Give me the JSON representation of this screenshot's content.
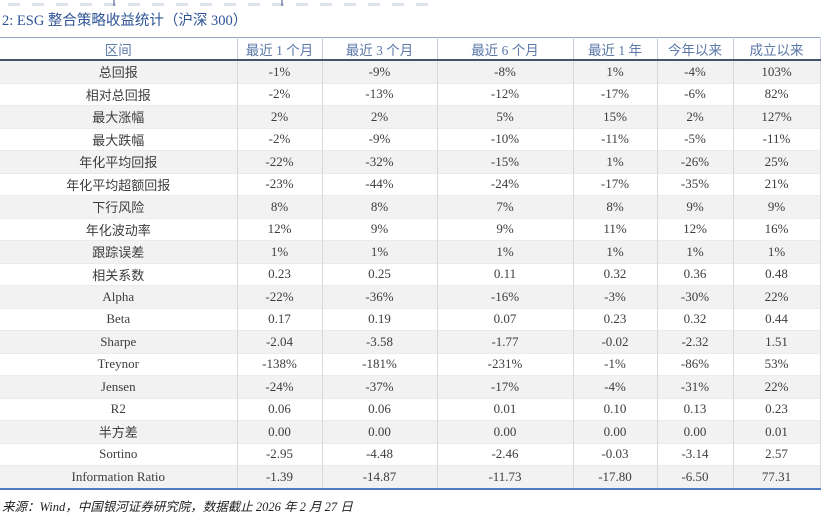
{
  "title": "2: ESG 整合策略收益统计（沪深 300）",
  "table": {
    "columns": [
      "区间",
      "最近 1 个月",
      "最近 3 个月",
      "最近 6 个月",
      "最近 1 年",
      "今年以来",
      "成立以来"
    ],
    "rows": [
      {
        "label": "总回报",
        "values": [
          "-1%",
          "-9%",
          "-8%",
          "1%",
          "-4%",
          "103%"
        ]
      },
      {
        "label": "相对总回报",
        "values": [
          "-2%",
          "-13%",
          "-12%",
          "-17%",
          "-6%",
          "82%"
        ]
      },
      {
        "label": "最大涨幅",
        "values": [
          "2%",
          "2%",
          "5%",
          "15%",
          "2%",
          "127%"
        ]
      },
      {
        "label": "最大跌幅",
        "values": [
          "-2%",
          "-9%",
          "-10%",
          "-11%",
          "-5%",
          "-11%"
        ]
      },
      {
        "label": "年化平均回报",
        "values": [
          "-22%",
          "-32%",
          "-15%",
          "1%",
          "-26%",
          "25%"
        ]
      },
      {
        "label": "年化平均超额回报",
        "values": [
          "-23%",
          "-44%",
          "-24%",
          "-17%",
          "-35%",
          "21%"
        ]
      },
      {
        "label": "下行风险",
        "values": [
          "8%",
          "8%",
          "7%",
          "8%",
          "9%",
          "9%"
        ]
      },
      {
        "label": "年化波动率",
        "values": [
          "12%",
          "9%",
          "9%",
          "11%",
          "12%",
          "16%"
        ]
      },
      {
        "label": "跟踪误差",
        "values": [
          "1%",
          "1%",
          "1%",
          "1%",
          "1%",
          "1%"
        ]
      },
      {
        "label": "相关系数",
        "values": [
          "0.23",
          "0.25",
          "0.11",
          "0.32",
          "0.36",
          "0.48"
        ]
      },
      {
        "label": "Alpha",
        "values": [
          "-22%",
          "-36%",
          "-16%",
          "-3%",
          "-30%",
          "22%"
        ]
      },
      {
        "label": "Beta",
        "values": [
          "0.17",
          "0.19",
          "0.07",
          "0.23",
          "0.32",
          "0.44"
        ]
      },
      {
        "label": "Sharpe",
        "values": [
          "-2.04",
          "-3.58",
          "-1.77",
          "-0.02",
          "-2.32",
          "1.51"
        ]
      },
      {
        "label": "Treynor",
        "values": [
          "-138%",
          "-181%",
          "-231%",
          "-1%",
          "-86%",
          "53%"
        ]
      },
      {
        "label": "Jensen",
        "values": [
          "-24%",
          "-37%",
          "-17%",
          "-4%",
          "-31%",
          "22%"
        ]
      },
      {
        "label": "R2",
        "values": [
          "0.06",
          "0.06",
          "0.01",
          "0.10",
          "0.13",
          "0.23"
        ]
      },
      {
        "label": "半方差",
        "values": [
          "0.00",
          "0.00",
          "0.00",
          "0.00",
          "0.00",
          "0.01"
        ]
      },
      {
        "label": "Sortino",
        "values": [
          "-2.95",
          "-4.48",
          "-2.46",
          "-0.03",
          "-3.14",
          "2.57"
        ]
      },
      {
        "label": "Information Ratio",
        "values": [
          "-1.39",
          "-14.87",
          "-11.73",
          "-17.80",
          "-6.50",
          "77.31"
        ]
      }
    ]
  },
  "footer": "来源：Wind，中国银河证券研究院，数据截止 2026 年 2 月 27 日",
  "colors": {
    "title_text": "#2e5496",
    "header_text": "#5b79a9",
    "body_text": "#3d3d3d",
    "row_stripe": "#f2f2f2",
    "table_top_border": "#94a2bc",
    "header_bottom_border": "#44546a",
    "table_bottom_border": "#4f7ac2",
    "cell_border": "#d9d9d9"
  }
}
